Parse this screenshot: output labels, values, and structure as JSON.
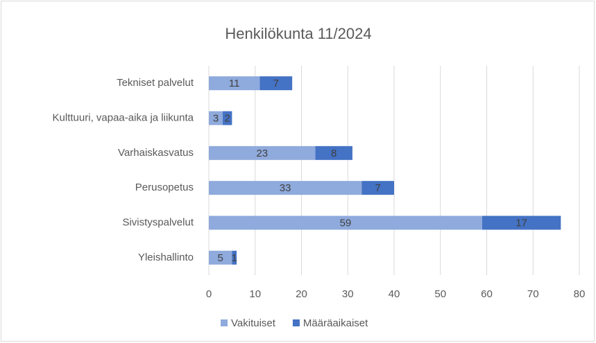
{
  "chart_data": {
    "type": "bar",
    "orientation": "horizontal",
    "stacked": true,
    "title": "Henkilökunta 11/2024",
    "categories": [
      "Tekniset palvelut",
      "Kulttuuri, vapaa-aika ja liikunta",
      "Varhaiskasvatus",
      "Perusopetus",
      "Sivistyspalvelut",
      "Yleishallinto"
    ],
    "series": [
      {
        "name": "Vakituiset",
        "color": "#8faadc",
        "values": [
          11,
          3,
          23,
          33,
          59,
          5
        ]
      },
      {
        "name": "Määräaikaiset",
        "color": "#4472c4",
        "values": [
          7,
          2,
          8,
          7,
          17,
          1
        ]
      }
    ],
    "xlim": [
      0,
      80
    ],
    "xticks": [
      0,
      10,
      20,
      30,
      40,
      50,
      60,
      70,
      80
    ],
    "grid": true,
    "legend": "bottom"
  }
}
